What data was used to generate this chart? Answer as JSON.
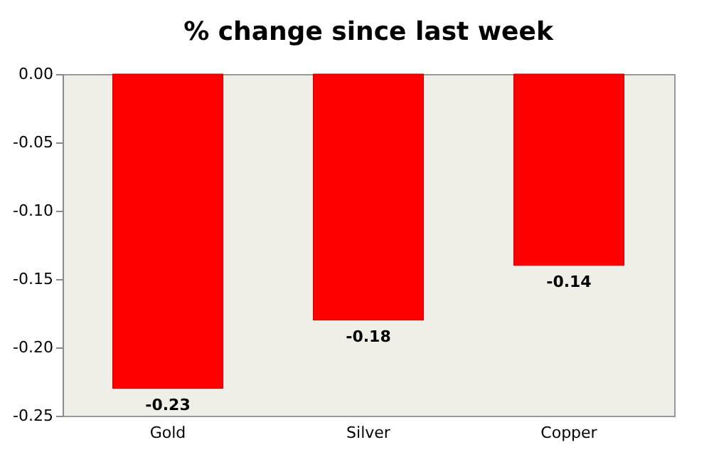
{
  "chart_data": {
    "type": "bar",
    "title": "% change since last week",
    "categories": [
      "Gold",
      "Silver",
      "Copper"
    ],
    "values": [
      -0.23,
      -0.18,
      -0.14
    ],
    "color": "#ff0000",
    "ylim": [
      -0.25,
      0.0
    ],
    "yticks": [
      {
        "value": 0,
        "label": "0.00"
      },
      {
        "value": -0.05,
        "label": "-0.05"
      },
      {
        "value": -0.1,
        "label": "-0.10"
      },
      {
        "value": -0.15,
        "label": "-0.15"
      },
      {
        "value": -0.2,
        "label": "-0.20"
      },
      {
        "value": -0.25,
        "label": "-0.25"
      }
    ],
    "data_labels": true,
    "grid": false
  }
}
